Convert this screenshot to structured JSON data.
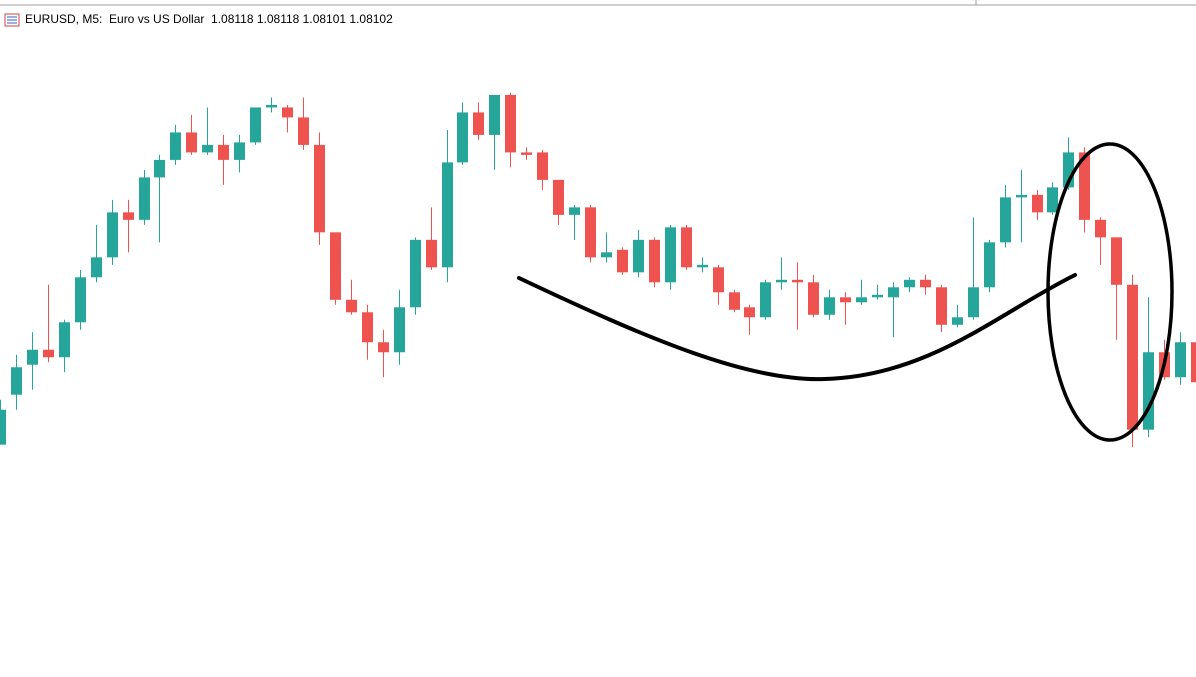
{
  "chart_data": {
    "type": "candlestick",
    "title": "EURUSD, M5:  Euro vs US Dollar  1.08118 1.08118 1.08101 1.08102",
    "up_color": "#26a69a",
    "down_color": "#ef5350",
    "ylim": [
      1.07984,
      1.08243
    ],
    "open": [
      1.08077,
      1.08097,
      1.08109,
      1.08115,
      1.08112,
      1.08126,
      1.08144,
      1.08152,
      1.0817,
      1.08167,
      1.08184,
      1.08191,
      1.08202,
      1.08194,
      1.08197,
      1.08191,
      1.08198,
      1.08212,
      1.08212,
      1.08208,
      1.08197,
      1.08162,
      1.08135,
      1.0813,
      1.08118,
      1.08114,
      1.08132,
      1.08159,
      1.08148,
      1.0819,
      1.0821,
      1.08201,
      1.08217,
      1.08194,
      1.08194,
      1.08183,
      1.08169,
      1.08172,
      1.08152,
      1.08155,
      1.08146,
      1.08159,
      1.08142,
      1.08164,
      1.08148,
      1.08148,
      1.08138,
      1.08132,
      1.08128,
      1.08142,
      1.08143,
      1.08142,
      1.08129,
      1.08136,
      1.08134,
      1.08136,
      1.08136,
      1.0814,
      1.08143,
      1.0814,
      1.08125,
      1.08128,
      1.0814,
      1.08158,
      1.08176,
      1.08177,
      1.0817,
      1.0818,
      1.08194,
      1.08167,
      1.0816,
      1.08141,
      1.08083,
      1.08114,
      1.08104,
      1.08118
    ],
    "high": [
      1.08095,
      1.08113,
      1.08122,
      1.08141,
      1.08127,
      1.08147,
      1.08165,
      1.08175,
      1.08175,
      1.08187,
      1.08193,
      1.08205,
      1.08209,
      1.08212,
      1.08201,
      1.08201,
      1.08212,
      1.08216,
      1.08213,
      1.08216,
      1.08202,
      1.08162,
      1.08143,
      1.08133,
      1.08123,
      1.08139,
      1.0816,
      1.08172,
      1.08203,
      1.08214,
      1.08214,
      1.08217,
      1.08218,
      1.08196,
      1.08195,
      1.08183,
      1.08173,
      1.08173,
      1.08162,
      1.08156,
      1.08163,
      1.0816,
      1.08165,
      1.08165,
      1.08152,
      1.08149,
      1.08139,
      1.08133,
      1.08143,
      1.08152,
      1.0815,
      1.08145,
      1.08139,
      1.08138,
      1.08143,
      1.08141,
      1.08142,
      1.08144,
      1.08145,
      1.08141,
      1.08133,
      1.08168,
      1.08159,
      1.08181,
      1.08187,
      1.08179,
      1.08182,
      1.082,
      1.08196,
      1.08168,
      1.0816,
      1.08145,
      1.08136,
      1.08119,
      1.08122,
      1.08118
    ],
    "low": [
      1.08077,
      1.08091,
      1.08099,
      1.0811,
      1.08106,
      1.08123,
      1.08142,
      1.08149,
      1.08154,
      1.08165,
      1.08158,
      1.08189,
      1.08193,
      1.08193,
      1.08181,
      1.08186,
      1.08197,
      1.0821,
      1.08202,
      1.08195,
      1.08157,
      1.08133,
      1.08129,
      1.08111,
      1.08104,
      1.08109,
      1.08129,
      1.08147,
      1.08142,
      1.08189,
      1.08199,
      1.08187,
      1.08188,
      1.08191,
      1.08179,
      1.08165,
      1.08159,
      1.0815,
      1.0815,
      1.08145,
      1.08144,
      1.0814,
      1.08139,
      1.08147,
      1.08146,
      1.08133,
      1.0813,
      1.08121,
      1.08127,
      1.08139,
      1.08123,
      1.08128,
      1.08127,
      1.08125,
      1.08133,
      1.08135,
      1.0812,
      1.08138,
      1.08137,
      1.08122,
      1.08124,
      1.08127,
      1.08138,
      1.08156,
      1.08158,
      1.08167,
      1.08169,
      1.08179,
      1.08162,
      1.08149,
      1.08119,
      1.08076,
      1.0808,
      1.08103,
      1.08101,
      1.08101
    ],
    "close": [
      1.08091,
      1.08108,
      1.08115,
      1.08112,
      1.08126,
      1.08144,
      1.08152,
      1.0817,
      1.08167,
      1.08184,
      1.08191,
      1.08202,
      1.08194,
      1.08197,
      1.08191,
      1.08198,
      1.08212,
      1.08213,
      1.08208,
      1.08197,
      1.08162,
      1.08135,
      1.0813,
      1.08118,
      1.08114,
      1.08132,
      1.08159,
      1.08148,
      1.0819,
      1.0821,
      1.08201,
      1.08217,
      1.08194,
      1.08193,
      1.08183,
      1.08169,
      1.08172,
      1.08152,
      1.08154,
      1.08146,
      1.08159,
      1.08142,
      1.08164,
      1.08148,
      1.08149,
      1.08138,
      1.08131,
      1.08128,
      1.08142,
      1.08143,
      1.08142,
      1.08129,
      1.08136,
      1.08134,
      1.08136,
      1.08137,
      1.0814,
      1.08143,
      1.0814,
      1.08125,
      1.08128,
      1.0814,
      1.08158,
      1.08176,
      1.08177,
      1.0817,
      1.0818,
      1.08194,
      1.08167,
      1.0816,
      1.08141,
      1.08083,
      1.08114,
      1.08104,
      1.08118,
      1.08102
    ]
  }
}
